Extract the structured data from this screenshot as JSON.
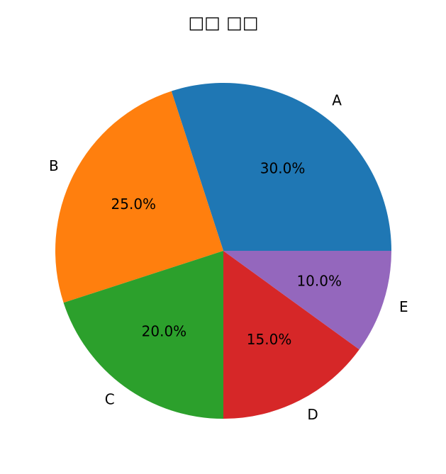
{
  "chart_data": {
    "type": "pie",
    "title": "□□ □□",
    "categories": [
      "A",
      "B",
      "C",
      "D",
      "E"
    ],
    "values": [
      30,
      25,
      20,
      15,
      10
    ],
    "value_labels": [
      "30.0%",
      "25.0%",
      "20.0%",
      "15.0%",
      "10.0%"
    ],
    "colors": [
      "#1f77b4",
      "#ff7f0e",
      "#2ca02c",
      "#d62728",
      "#9467bd"
    ]
  }
}
